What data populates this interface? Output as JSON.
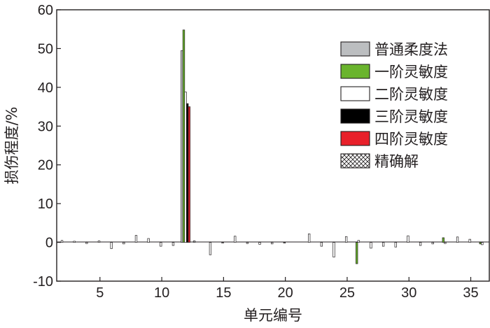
{
  "chart_data": {
    "type": "bar",
    "title": "",
    "xlabel": "单元编号",
    "ylabel": "损伤程度/%",
    "xlim": [
      1.5,
      36.5
    ],
    "ylim": [
      -10,
      60
    ],
    "xticks": [
      5,
      10,
      15,
      20,
      25,
      30,
      35
    ],
    "yticks": [
      -10,
      0,
      10,
      20,
      30,
      40,
      50,
      60
    ],
    "grid": false,
    "legend_position": "top-right",
    "series": [
      {
        "name": "普通柔度法",
        "color": "#bcbec0",
        "hatch": false,
        "points": [
          [
            12,
            49.5
          ],
          [
            13,
            0.4
          ]
        ]
      },
      {
        "name": "一阶灵敏度",
        "color": "#6ab42d",
        "hatch": false,
        "points": [
          [
            12,
            54.8
          ],
          [
            26,
            -5.5
          ],
          [
            33,
            1.2
          ],
          [
            36,
            -0.4
          ]
        ]
      },
      {
        "name": "二阶灵敏度",
        "color": "#ffffff",
        "hatch": false,
        "points": [
          [
            2,
            0.5
          ],
          [
            3,
            0.3
          ],
          [
            4,
            -0.3
          ],
          [
            5,
            0.4
          ],
          [
            6,
            -1.6
          ],
          [
            7,
            -0.4
          ],
          [
            8,
            1.8
          ],
          [
            9,
            1.0
          ],
          [
            10,
            -1.0
          ],
          [
            11,
            -0.8
          ],
          [
            12,
            38.8
          ],
          [
            14,
            -3.2
          ],
          [
            15,
            -0.2
          ],
          [
            16,
            1.6
          ],
          [
            17,
            -0.3
          ],
          [
            18,
            -0.5
          ],
          [
            19,
            -0.4
          ],
          [
            20,
            -0.2
          ],
          [
            22,
            2.2
          ],
          [
            23,
            -1.0
          ],
          [
            24,
            -3.8
          ],
          [
            25,
            1.5
          ],
          [
            26,
            0.5
          ],
          [
            27,
            -1.5
          ],
          [
            28,
            -1.0
          ],
          [
            29,
            -1.2
          ],
          [
            30,
            1.7
          ],
          [
            31,
            -0.8
          ],
          [
            32,
            -0.4
          ],
          [
            33,
            -0.3
          ],
          [
            34,
            1.4
          ],
          [
            35,
            0.8
          ],
          [
            36,
            -0.6
          ]
        ]
      },
      {
        "name": "三阶灵敏度",
        "color": "#000000",
        "hatch": false,
        "points": [
          [
            12,
            35.8
          ]
        ]
      },
      {
        "name": "四阶灵敏度",
        "color": "#e8202a",
        "hatch": false,
        "points": [
          [
            12,
            35.0
          ]
        ]
      },
      {
        "name": "精确解",
        "color": "#ffffff",
        "hatch": true,
        "points": []
      }
    ]
  }
}
